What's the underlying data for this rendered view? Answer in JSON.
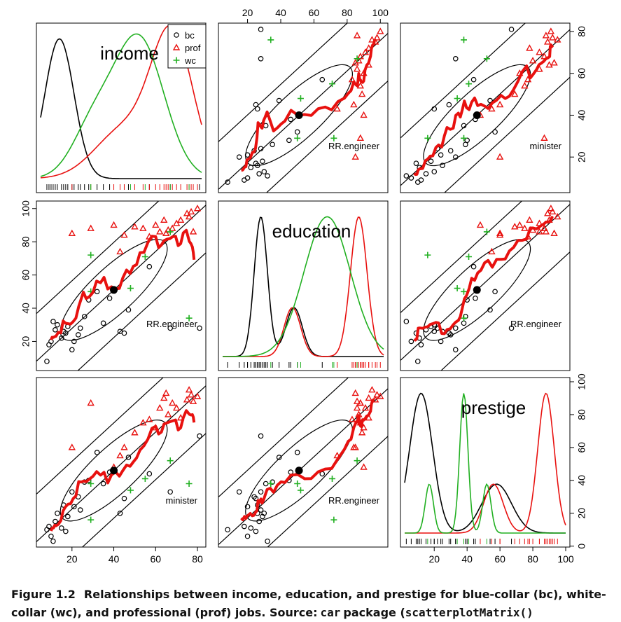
{
  "chart_data": {
    "type": "scatter",
    "variables": [
      "income",
      "education",
      "prestige"
    ],
    "groups": [
      "bc",
      "prof",
      "wc"
    ],
    "colors": {
      "bc": "#000000",
      "prof": "#e8110f",
      "wc": "#22b022",
      "fit": "#e8110f"
    },
    "ranges": {
      "income": [
        5,
        82
      ],
      "education": [
        5,
        102
      ],
      "prestige": [
        2,
        100
      ]
    },
    "axis_ticks": {
      "income": [
        "20",
        "40",
        "60",
        "80"
      ],
      "education": [
        "20",
        "40",
        "60",
        "80",
        "100"
      ],
      "prestige": [
        "0",
        "20",
        "40",
        "60",
        "80",
        "100"
      ]
    },
    "means": {
      "income": 40,
      "education": 51,
      "prestige": 46
    },
    "legend": {
      "placement": "top-right of income panel",
      "entries": [
        "bc",
        "prof",
        "wc"
      ]
    },
    "points": {
      "bc": [
        {
          "income": 8,
          "education": 8,
          "prestige": 10
        },
        {
          "income": 9,
          "education": 18,
          "prestige": 12
        },
        {
          "income": 10,
          "education": 20,
          "prestige": 6
        },
        {
          "income": 11,
          "education": 32,
          "prestige": 3
        },
        {
          "income": 12,
          "education": 27,
          "prestige": 15
        },
        {
          "income": 13,
          "education": 30,
          "prestige": 20
        },
        {
          "income": 15,
          "education": 22,
          "prestige": 11
        },
        {
          "income": 16,
          "education": 26,
          "prestige": 25
        },
        {
          "income": 17,
          "education": 25,
          "prestige": 9
        },
        {
          "income": 18,
          "education": 29,
          "prestige": 18
        },
        {
          "income": 20,
          "education": 15,
          "prestige": 33
        },
        {
          "income": 21,
          "education": 20,
          "prestige": 24
        },
        {
          "income": 23,
          "education": 24,
          "prestige": 30
        },
        {
          "income": 24,
          "education": 28,
          "prestige": 22
        },
        {
          "income": 26,
          "education": 35,
          "prestige": 39
        },
        {
          "income": 28,
          "education": 45,
          "prestige": 40
        },
        {
          "income": 32,
          "education": 50,
          "prestige": 57
        },
        {
          "income": 35,
          "education": 31,
          "prestige": 38
        },
        {
          "income": 38,
          "education": 46,
          "prestige": 45
        },
        {
          "income": 43,
          "education": 26,
          "prestige": 20
        },
        {
          "income": 45,
          "education": 25,
          "prestige": 29
        },
        {
          "income": 47,
          "education": 39,
          "prestige": 54
        },
        {
          "income": 57,
          "education": 65,
          "prestige": 44
        },
        {
          "income": 67,
          "education": 28,
          "prestige": 33
        },
        {
          "income": 81,
          "education": 28,
          "prestige": 67
        }
      ],
      "prof": [
        {
          "income": 20,
          "education": 85,
          "prestige": 60
        },
        {
          "income": 29,
          "education": 88,
          "prestige": 87
        },
        {
          "income": 40,
          "education": 90,
          "prestige": 48
        },
        {
          "income": 43,
          "education": 74,
          "prestige": 55
        },
        {
          "income": 45,
          "education": 84,
          "prestige": 60
        },
        {
          "income": 50,
          "education": 89,
          "prestige": 69
        },
        {
          "income": 54,
          "education": 88,
          "prestige": 75
        },
        {
          "income": 57,
          "education": 83,
          "prestige": 77
        },
        {
          "income": 60,
          "education": 90,
          "prestige": 72
        },
        {
          "income": 62,
          "education": 86,
          "prestige": 84
        },
        {
          "income": 64,
          "education": 93,
          "prestige": 90
        },
        {
          "income": 65,
          "education": 85,
          "prestige": 93
        },
        {
          "income": 66,
          "education": 87,
          "prestige": 80
        },
        {
          "income": 68,
          "education": 88,
          "prestige": 87
        },
        {
          "income": 70,
          "education": 91,
          "prestige": 84
        },
        {
          "income": 72,
          "education": 93,
          "prestige": 78
        },
        {
          "income": 75,
          "education": 97,
          "prestige": 89
        },
        {
          "income": 76,
          "education": 95,
          "prestige": 95
        },
        {
          "income": 77,
          "education": 98,
          "prestige": 92
        },
        {
          "income": 78,
          "education": 86,
          "prestige": 88
        },
        {
          "income": 80,
          "education": 100,
          "prestige": 91
        }
      ],
      "wc": [
        {
          "income": 29,
          "education": 72,
          "prestige": 16
        },
        {
          "income": 29,
          "education": 50,
          "prestige": 38
        },
        {
          "income": 48,
          "education": 52,
          "prestige": 34
        },
        {
          "income": 55,
          "education": 71,
          "prestige": 41
        },
        {
          "income": 67,
          "education": 86,
          "prestige": 52
        },
        {
          "income": 76,
          "education": 34,
          "prestige": 38
        }
      ]
    },
    "labels": [
      "RR.engineer",
      "minister",
      "RR.engineer",
      "RR.engineer",
      "minister",
      "RR.engineer"
    ],
    "panel_titles": [
      "income",
      "education",
      "prestige"
    ]
  },
  "caption": {
    "figure_number": "Figure 1.2",
    "text": "Relationships between income, education, and prestige for blue-collar (bc), white-collar (wc), and professional (prof) jobs. Source:",
    "code_1": "car",
    "text_2": "package (",
    "code_2": "scatterplotMatrix()"
  }
}
